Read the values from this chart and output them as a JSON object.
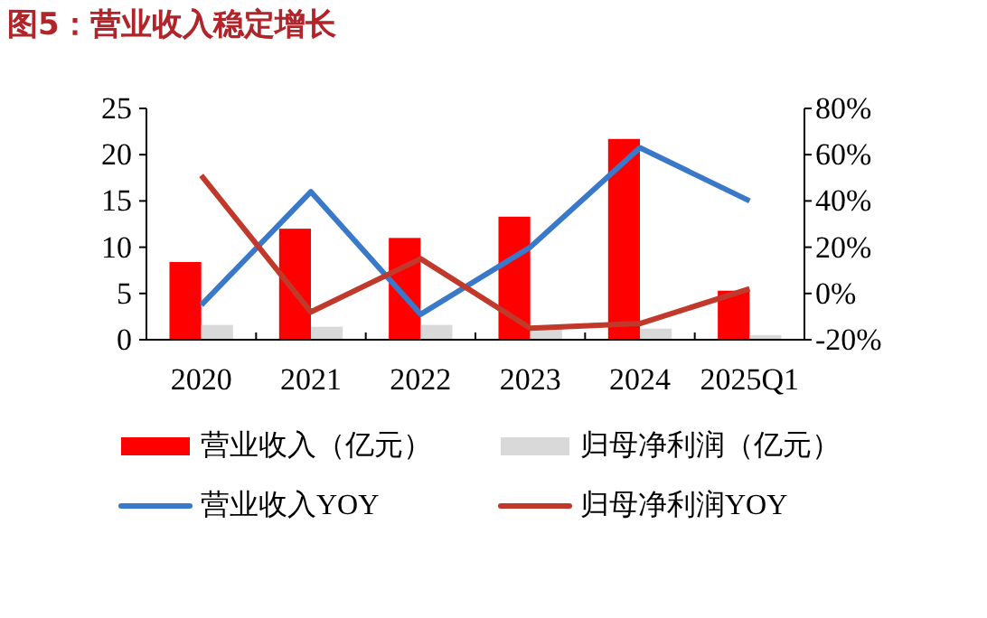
{
  "chart_data": {
    "type": "bar",
    "title": "图5：营业收入稳定增长",
    "categories": [
      "2020",
      "2021",
      "2022",
      "2023",
      "2024",
      "2025Q1"
    ],
    "series": [
      {
        "name": "营业收入（亿元）",
        "color": "#ff0000",
        "values": [
          8.4,
          12.0,
          11.0,
          13.3,
          21.7,
          5.3
        ]
      },
      {
        "name": "归母净利润（亿元）",
        "color": "#d9d9d9",
        "values": [
          1.6,
          1.4,
          1.6,
          1.2,
          1.2,
          0.5
        ]
      },
      {
        "name": "营业收入YOY",
        "type": "line",
        "axis": "y2",
        "color": "#3a78c9",
        "values": [
          -5,
          44,
          -9,
          20,
          63,
          40
        ]
      },
      {
        "name": "归母净利润YOY",
        "type": "line",
        "axis": "y2",
        "color": "#c0392b",
        "values": [
          51,
          -8,
          15,
          -15,
          -13,
          2
        ]
      }
    ],
    "ylim": [
      0,
      25
    ],
    "yticks": [
      0,
      5,
      10,
      15,
      20,
      25
    ],
    "y2lim": [
      -20,
      80
    ],
    "y2ticks": [
      {
        "value": -20,
        "label": "-20%"
      },
      {
        "value": 0,
        "label": "0%"
      },
      {
        "value": 20,
        "label": "20%"
      },
      {
        "value": 40,
        "label": "40%"
      },
      {
        "value": 60,
        "label": "60%"
      },
      {
        "value": 80,
        "label": "80%"
      }
    ],
    "legend": "bottom",
    "grid": false
  }
}
